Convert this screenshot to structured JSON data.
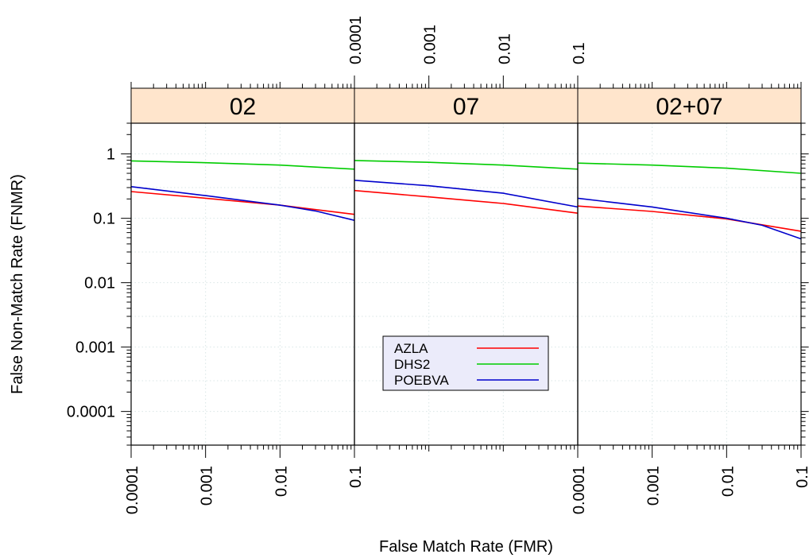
{
  "chart_data": {
    "type": "line",
    "xlabel": "False Match Rate (FMR)",
    "ylabel": "False Non-Match Rate (FNMR)",
    "x_scale": "log",
    "y_scale": "log",
    "xlim": [
      0.0001,
      0.1
    ],
    "ylim": [
      3e-05,
      3
    ],
    "x_ticks": [
      {
        "value": 0.0001,
        "label": "0.0001"
      },
      {
        "value": 0.001,
        "label": "0.001"
      },
      {
        "value": 0.01,
        "label": "0.01"
      },
      {
        "value": 0.1,
        "label": "0.1"
      }
    ],
    "y_ticks": [
      {
        "value": 1,
        "label": "1"
      },
      {
        "value": 0.1,
        "label": "0.1"
      },
      {
        "value": 0.01,
        "label": "0.01"
      },
      {
        "value": 0.001,
        "label": "0.001"
      },
      {
        "value": 0.0001,
        "label": "0.0001"
      }
    ],
    "grid": true,
    "legend": {
      "placement": "center-bottom",
      "entries": [
        {
          "name": "AZLA",
          "color": "#ff0000"
        },
        {
          "name": "DHS2",
          "color": "#00cc00"
        },
        {
          "name": "POEBVA",
          "color": "#0000cc"
        }
      ]
    },
    "panels": [
      {
        "title": "02",
        "series": [
          {
            "name": "AZLA",
            "color": "#ff0000",
            "x": [
              0.0001,
              0.001,
              0.01,
              0.1
            ],
            "y": [
              0.26,
              0.205,
              0.16,
              0.115
            ]
          },
          {
            "name": "DHS2",
            "color": "#00cc00",
            "x": [
              0.0001,
              0.001,
              0.01,
              0.1
            ],
            "y": [
              0.78,
              0.73,
              0.67,
              0.58
            ]
          },
          {
            "name": "POEBVA",
            "color": "#0000cc",
            "x": [
              0.0001,
              0.001,
              0.01,
              0.03,
              0.1
            ],
            "y": [
              0.31,
              0.225,
              0.16,
              0.13,
              0.093
            ]
          }
        ]
      },
      {
        "title": "07",
        "series": [
          {
            "name": "AZLA",
            "color": "#ff0000",
            "x": [
              0.0001,
              0.001,
              0.01,
              0.1
            ],
            "y": [
              0.27,
              0.215,
              0.17,
              0.12
            ]
          },
          {
            "name": "DHS2",
            "color": "#00cc00",
            "x": [
              0.0001,
              0.001,
              0.01,
              0.1
            ],
            "y": [
              0.79,
              0.74,
              0.67,
              0.58
            ]
          },
          {
            "name": "POEBVA",
            "color": "#0000cc",
            "x": [
              0.0001,
              0.001,
              0.01,
              0.1
            ],
            "y": [
              0.39,
              0.32,
              0.245,
              0.15
            ]
          }
        ]
      },
      {
        "title": "02+07",
        "series": [
          {
            "name": "AZLA",
            "color": "#ff0000",
            "x": [
              0.0001,
              0.001,
              0.01,
              0.1
            ],
            "y": [
              0.155,
              0.128,
              0.098,
              0.063
            ]
          },
          {
            "name": "DHS2",
            "color": "#00cc00",
            "x": [
              0.0001,
              0.001,
              0.01,
              0.1
            ],
            "y": [
              0.72,
              0.67,
              0.6,
              0.5
            ]
          },
          {
            "name": "POEBVA",
            "color": "#0000cc",
            "x": [
              0.0001,
              0.001,
              0.01,
              0.03,
              0.1
            ],
            "y": [
              0.205,
              0.15,
              0.1,
              0.078,
              0.048
            ]
          }
        ]
      }
    ]
  }
}
